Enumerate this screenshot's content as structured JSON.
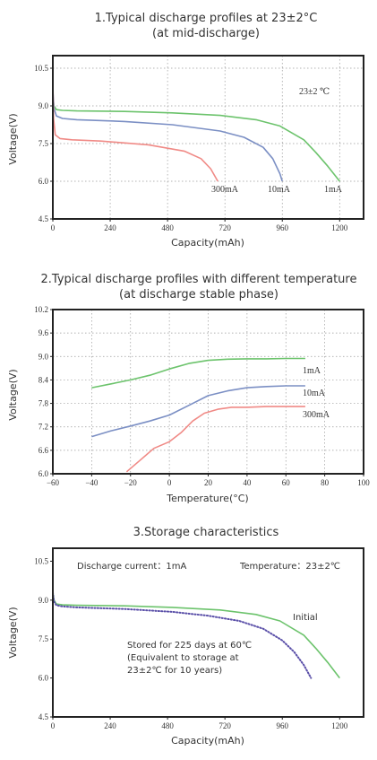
{
  "chart_data": [
    {
      "type": "line",
      "title": "1.Typical discharge profiles at 23±2°C",
      "subtitle": "(at mid-discharge)",
      "xlabel": "Capacity(mAh)",
      "ylabel": "Voltage(V)",
      "xlim": [
        0,
        1300
      ],
      "ylim": [
        4.5,
        11.0
      ],
      "xticks": [
        "0",
        "240",
        "480",
        "720",
        "960",
        "1200"
      ],
      "yticks": [
        "4.5",
        "6.0",
        "7.5",
        "9.0",
        "10.5"
      ],
      "grid": true,
      "annotations": [
        {
          "text": "23±2 ℃"
        }
      ],
      "series": [
        {
          "name": "1mA",
          "color": "#6cc36c",
          "x": [
            0,
            5,
            15,
            40,
            100,
            300,
            500,
            700,
            850,
            950,
            1050,
            1100,
            1150,
            1200
          ],
          "y": [
            9.35,
            9.0,
            8.85,
            8.82,
            8.8,
            8.78,
            8.72,
            8.62,
            8.45,
            8.2,
            7.65,
            7.15,
            6.6,
            6.0
          ]
        },
        {
          "name": "10mA",
          "color": "#7b8fc4",
          "x": [
            0,
            5,
            15,
            40,
            100,
            300,
            500,
            700,
            800,
            880,
            920,
            950,
            960
          ],
          "y": [
            9.6,
            8.9,
            8.6,
            8.5,
            8.45,
            8.38,
            8.25,
            8.0,
            7.75,
            7.35,
            6.9,
            6.3,
            6.0
          ]
        },
        {
          "name": "300mA",
          "color": "#f08a86",
          "x": [
            0,
            3,
            10,
            30,
            80,
            200,
            400,
            550,
            620,
            660,
            690
          ],
          "y": [
            10.0,
            8.5,
            7.85,
            7.7,
            7.65,
            7.6,
            7.45,
            7.2,
            6.9,
            6.5,
            6.0
          ]
        }
      ]
    },
    {
      "type": "line",
      "title": "2.Typical discharge profiles with different temperature",
      "subtitle": "(at discharge stable phase)",
      "xlabel": "Temperature(°C)",
      "ylabel": "Voltage(V)",
      "xlim": [
        -60,
        100
      ],
      "ylim": [
        6.0,
        10.2
      ],
      "xticks": [
        "−60",
        "−40",
        "−20",
        "0",
        "20",
        "40",
        "60",
        "80",
        "100"
      ],
      "yticks": [
        "6.0",
        "6.6",
        "7.2",
        "7.8",
        "8.4",
        "9.0",
        "9.6",
        "10.2"
      ],
      "grid": true,
      "series": [
        {
          "name": "1mA",
          "color": "#6cc36c",
          "x": [
            -40,
            -30,
            -20,
            -10,
            0,
            10,
            20,
            30,
            40,
            50,
            60,
            70
          ],
          "y": [
            8.2,
            8.3,
            8.4,
            8.52,
            8.68,
            8.82,
            8.9,
            8.93,
            8.94,
            8.94,
            8.95,
            8.95
          ]
        },
        {
          "name": "10mA",
          "color": "#7b8fc4",
          "x": [
            -40,
            -30,
            -20,
            -10,
            0,
            10,
            20,
            30,
            40,
            50,
            60,
            70
          ],
          "y": [
            6.95,
            7.1,
            7.22,
            7.35,
            7.5,
            7.75,
            8.0,
            8.12,
            8.2,
            8.23,
            8.25,
            8.25
          ]
        },
        {
          "name": "300mA",
          "color": "#f08a86",
          "x": [
            -22,
            -15,
            -8,
            0,
            6,
            12,
            18,
            25,
            32,
            40,
            50,
            60,
            70
          ],
          "y": [
            6.05,
            6.35,
            6.65,
            6.82,
            7.05,
            7.35,
            7.55,
            7.65,
            7.7,
            7.7,
            7.72,
            7.72,
            7.72
          ]
        }
      ]
    },
    {
      "type": "line",
      "title": "3.Storage characteristics",
      "xlabel": "Capacity(mAh)",
      "ylabel": "Voltage(V)",
      "xlim": [
        0,
        1300
      ],
      "ylim": [
        4.5,
        11.0
      ],
      "xticks": [
        "0",
        "240",
        "480",
        "720",
        "960",
        "1200"
      ],
      "yticks": [
        "4.5",
        "6.0",
        "7.5",
        "9.0",
        "10.5"
      ],
      "grid": false,
      "annotations": [
        {
          "text": "Discharge current：1mA"
        },
        {
          "text": "Temperature：23±2℃"
        },
        {
          "text": "Stored for 225 days at 60℃"
        },
        {
          "text": "(Equivalent to storage at"
        },
        {
          "text": "23±2℃ for 10 years)"
        }
      ],
      "series": [
        {
          "name": "Initial",
          "color": "#6cc36c",
          "style": "solid",
          "x": [
            0,
            5,
            15,
            40,
            100,
            300,
            500,
            700,
            850,
            950,
            1050,
            1100,
            1150,
            1200
          ],
          "y": [
            9.3,
            9.0,
            8.85,
            8.82,
            8.8,
            8.78,
            8.72,
            8.62,
            8.45,
            8.2,
            7.65,
            7.15,
            6.6,
            6.0
          ]
        },
        {
          "color": "#5a4fa8",
          "style": "dotted",
          "x": [
            0,
            5,
            15,
            40,
            100,
            300,
            500,
            650,
            780,
            880,
            960,
            1010,
            1050,
            1080
          ],
          "y": [
            9.3,
            8.95,
            8.8,
            8.76,
            8.72,
            8.66,
            8.55,
            8.4,
            8.2,
            7.9,
            7.45,
            7.0,
            6.5,
            6.0
          ]
        }
      ]
    }
  ]
}
